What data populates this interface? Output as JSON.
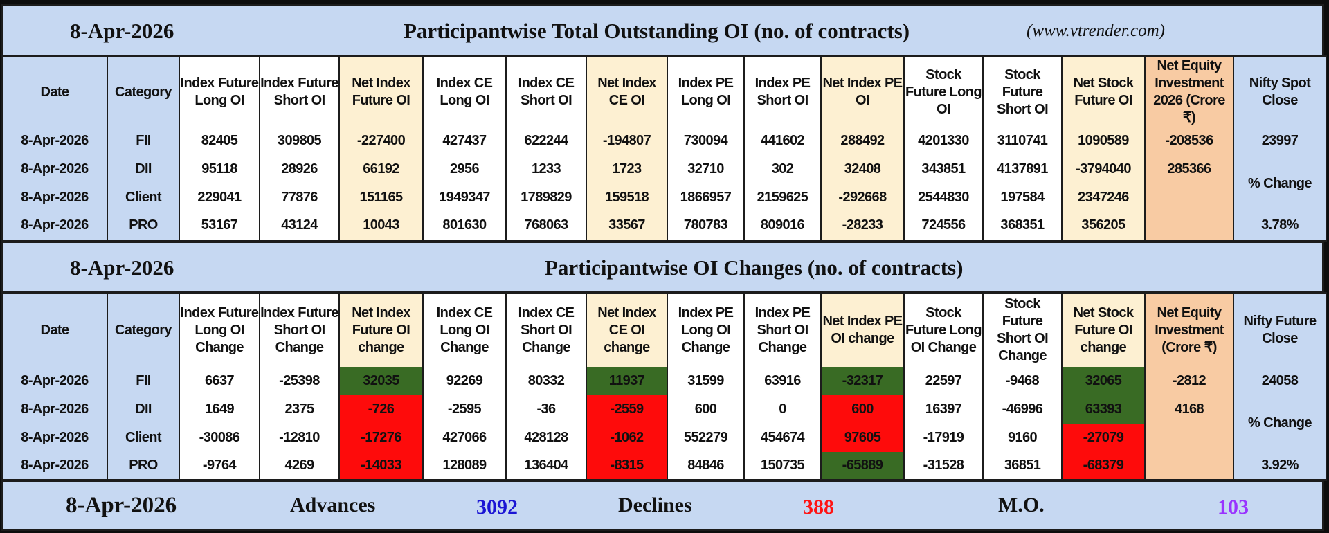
{
  "colors": {
    "band": "#c6d8f2",
    "net_column": "#fdf0d2",
    "equity_column": "#f8cba3",
    "green": "#396b24",
    "red": "#fe0b0b",
    "blue_text": "#1a14d4",
    "red_text": "#ff1414",
    "purple_text": "#9933ff"
  },
  "oi": {
    "date": "8-Apr-2026",
    "title": "Participantwise Total Outstanding OI (no. of contracts)",
    "source": "(www.vtrender.com)",
    "headers": [
      "Date",
      "Category",
      "Index Future Long OI",
      "Index Future Short OI",
      "Net Index Future OI",
      "Index CE Long OI",
      "Index CE Short OI",
      "Net Index CE OI",
      "Index PE Long OI",
      "Index PE Short OI",
      "Net Index PE OI",
      "Stock Future Long OI",
      "Stock Future Short OI",
      "Net Stock Future OI",
      "Net Equity Investment 2026 (Crore ₹)",
      "Nifty Spot Close"
    ],
    "rows": [
      [
        [
          "8-Apr-2026",
          "k"
        ],
        [
          "FII",
          "k"
        ],
        [
          "82405",
          "k"
        ],
        [
          "309805",
          "k"
        ],
        [
          "-227400",
          "r"
        ],
        [
          "427437",
          "k"
        ],
        [
          "622244",
          "k"
        ],
        [
          "-194807",
          "r"
        ],
        [
          "730094",
          "k"
        ],
        [
          "441602",
          "k"
        ],
        [
          "288492",
          "k"
        ],
        [
          "4201330",
          "k"
        ],
        [
          "3110741",
          "k"
        ],
        [
          "1090589",
          "k"
        ],
        [
          "-208536",
          "r"
        ],
        [
          "23997",
          "k"
        ]
      ],
      [
        [
          "8-Apr-2026",
          "k"
        ],
        [
          "DII",
          "k"
        ],
        [
          "95118",
          "k"
        ],
        [
          "28926",
          "k"
        ],
        [
          "66192",
          "k"
        ],
        [
          "2956",
          "k"
        ],
        [
          "1233",
          "k"
        ],
        [
          "1723",
          "k"
        ],
        [
          "32710",
          "k"
        ],
        [
          "302",
          "k"
        ],
        [
          "32408",
          "k"
        ],
        [
          "343851",
          "k"
        ],
        [
          "4137891",
          "k"
        ],
        [
          "-3794040",
          "r"
        ],
        [
          "285366",
          "b"
        ],
        [
          "% Change",
          "k"
        ]
      ],
      [
        [
          "8-Apr-2026",
          "k"
        ],
        [
          "Client",
          "k"
        ],
        [
          "229041",
          "k"
        ],
        [
          "77876",
          "k"
        ],
        [
          "151165",
          "k"
        ],
        [
          "1949347",
          "k"
        ],
        [
          "1789829",
          "k"
        ],
        [
          "159518",
          "k"
        ],
        [
          "1866957",
          "k"
        ],
        [
          "2159625",
          "k"
        ],
        [
          "-292668",
          "r"
        ],
        [
          "2544830",
          "k"
        ],
        [
          "197584",
          "k"
        ],
        [
          "2347246",
          "k"
        ]
      ],
      [
        [
          "8-Apr-2026",
          "k"
        ],
        [
          "PRO",
          "k"
        ],
        [
          "53167",
          "k"
        ],
        [
          "43124",
          "k"
        ],
        [
          "10043",
          "k"
        ],
        [
          "801630",
          "k"
        ],
        [
          "768063",
          "k"
        ],
        [
          "33567",
          "k"
        ],
        [
          "780783",
          "k"
        ],
        [
          "809016",
          "k"
        ],
        [
          "-28233",
          "r"
        ],
        [
          "724556",
          "k"
        ],
        [
          "368351",
          "k"
        ],
        [
          "356205",
          "k"
        ],
        [
          "3.78%",
          "b"
        ]
      ]
    ]
  },
  "changes": {
    "date": "8-Apr-2026",
    "title": "Participantwise OI Changes (no. of contracts)",
    "headers": [
      "Date",
      "Category",
      "Index Future Long OI Change",
      "Index Future Short OI Change",
      "Net Index Future OI change",
      "Index CE Long OI Change",
      "Index CE Short OI Change",
      "Net Index CE OI change",
      "Index PE Long OI Change",
      "Index PE Short OI Change",
      "Net Index PE OI change",
      "Stock Future Long OI Change",
      "Stock Future Short OI Change",
      "Net Stock Future OI change",
      "Net Equity Investment (Crore ₹)",
      "Nifty Future Close"
    ],
    "rows": [
      [
        [
          "8-Apr-2026",
          "k"
        ],
        [
          "FII",
          "k"
        ],
        [
          "6637",
          "b"
        ],
        [
          "-25398",
          "r"
        ],
        [
          "32035",
          "w",
          "g"
        ],
        [
          "92269",
          "b"
        ],
        [
          "80332",
          "b"
        ],
        [
          "11937",
          "w",
          "g"
        ],
        [
          "31599",
          "b"
        ],
        [
          "63916",
          "b"
        ],
        [
          "-32317",
          "w",
          "g"
        ],
        [
          "22597",
          "b"
        ],
        [
          "-9468",
          "r"
        ],
        [
          "32065",
          "w",
          "g"
        ],
        [
          "-2812",
          "r"
        ],
        [
          "24058",
          "k"
        ]
      ],
      [
        [
          "8-Apr-2026",
          "k"
        ],
        [
          "DII",
          "k"
        ],
        [
          "1649",
          "b"
        ],
        [
          "2375",
          "b"
        ],
        [
          "-726",
          "w",
          "R"
        ],
        [
          "-2595",
          "r"
        ],
        [
          "-36",
          "r"
        ],
        [
          "-2559",
          "w",
          "R"
        ],
        [
          "600",
          "b"
        ],
        [
          "0",
          "k"
        ],
        [
          "600",
          "w",
          "R"
        ],
        [
          "16397",
          "b"
        ],
        [
          "-46996",
          "r"
        ],
        [
          "63393",
          "w",
          "g"
        ],
        [
          "4168",
          "b"
        ],
        [
          "% Change",
          "k"
        ]
      ],
      [
        [
          "8-Apr-2026",
          "k"
        ],
        [
          "Client",
          "k"
        ],
        [
          "-30086",
          "r"
        ],
        [
          "-12810",
          "r"
        ],
        [
          "-17276",
          "w",
          "R"
        ],
        [
          "427066",
          "b"
        ],
        [
          "428128",
          "b"
        ],
        [
          "-1062",
          "w",
          "R"
        ],
        [
          "552279",
          "b"
        ],
        [
          "454674",
          "b"
        ],
        [
          "97605",
          "w",
          "R"
        ],
        [
          "-17919",
          "r"
        ],
        [
          "9160",
          "b"
        ],
        [
          "-27079",
          "w",
          "R"
        ]
      ],
      [
        [
          "8-Apr-2026",
          "k"
        ],
        [
          "PRO",
          "k"
        ],
        [
          "-9764",
          "r"
        ],
        [
          "4269",
          "b"
        ],
        [
          "-14033",
          "w",
          "R"
        ],
        [
          "128089",
          "b"
        ],
        [
          "136404",
          "b"
        ],
        [
          "-8315",
          "w",
          "R"
        ],
        [
          "84846",
          "b"
        ],
        [
          "150735",
          "b"
        ],
        [
          "-65889",
          "w",
          "g"
        ],
        [
          "-31528",
          "r"
        ],
        [
          "36851",
          "b"
        ],
        [
          "-68379",
          "w",
          "R"
        ],
        [
          "3.92%",
          "b"
        ]
      ]
    ]
  },
  "summary": {
    "date": "8-Apr-2026",
    "advances_label": "Advances",
    "advances": "3092",
    "declines_label": "Declines",
    "declines": "388",
    "mo_label": "M.O.",
    "mo": "103"
  }
}
